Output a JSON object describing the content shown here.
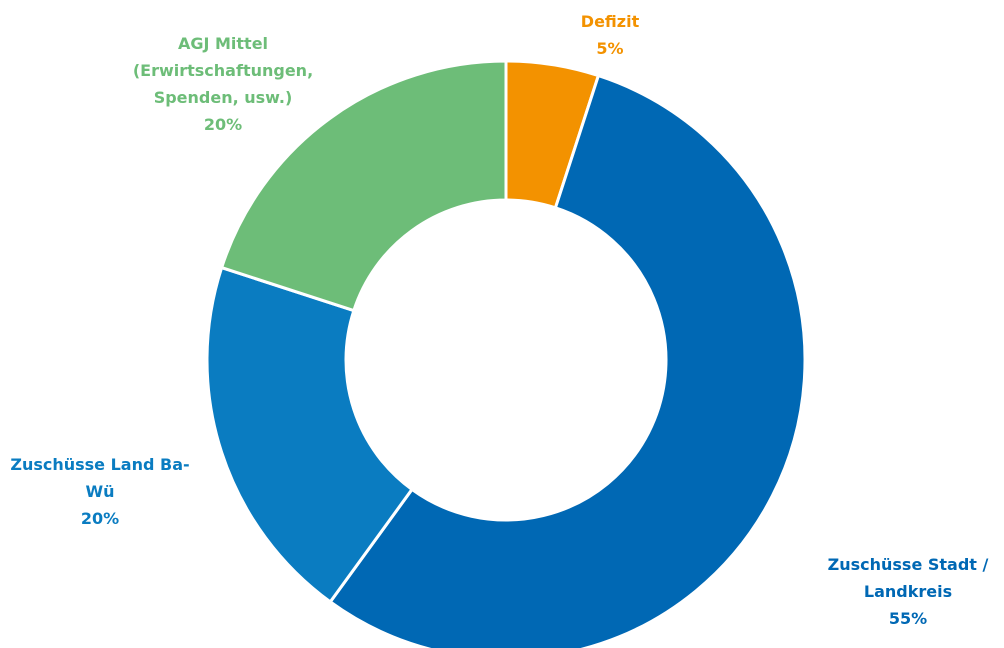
{
  "chart_data": {
    "type": "donut",
    "categories": [
      "Defizit",
      "Zuschüsse Stadt / Landkreis",
      "Zuschüsse Land Ba-Wü",
      "AGJ Mittel (Erwirtschaftungen, Spenden, usw.)"
    ],
    "values": [
      5,
      55,
      20,
      20
    ],
    "value_labels": [
      "5%",
      "55%",
      "20%",
      "20%"
    ],
    "colors": [
      "#f39200",
      "#0068b4",
      "#0a7cc1",
      "#6dbd78"
    ]
  }
}
